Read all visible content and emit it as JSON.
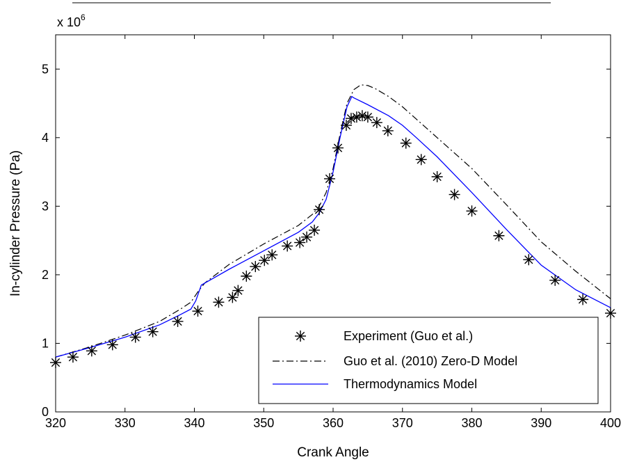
{
  "chart_data": {
    "type": "line",
    "xlabel": "Crank Angle",
    "ylabel": "In-cylinder Pressure (Pa)",
    "y_multiplier_base": "x 10",
    "y_multiplier_exp": "6",
    "xlim": [
      320,
      400
    ],
    "ylim": [
      0,
      5.5
    ],
    "x_ticks": [
      "320",
      "330",
      "340",
      "350",
      "360",
      "370",
      "380",
      "390",
      "400"
    ],
    "y_ticks": [
      "0",
      "1",
      "2",
      "3",
      "4",
      "5"
    ],
    "grid": false,
    "legend_position": "bottom-right",
    "series": [
      {
        "name": "Experiment (Guo et al.)",
        "style": "markers",
        "marker": "asterisk",
        "color": "#000000",
        "x": [
          320,
          322.5,
          325.2,
          328.2,
          331.5,
          334,
          337.6,
          340.5,
          343.5,
          345.5,
          346.3,
          347.5,
          348.8,
          350.1,
          351.2,
          353.4,
          355.2,
          356.2,
          357.3,
          358,
          359.5,
          360.7,
          361.9,
          362.6,
          363.4,
          364.2,
          365,
          366.3,
          367.9,
          370.5,
          372.7,
          375,
          377.5,
          380,
          383.9,
          388.2,
          392,
          396,
          400
        ],
        "y": [
          0.72,
          0.8,
          0.89,
          0.98,
          1.09,
          1.17,
          1.32,
          1.47,
          1.6,
          1.67,
          1.77,
          1.98,
          2.12,
          2.21,
          2.29,
          2.42,
          2.47,
          2.55,
          2.65,
          2.95,
          3.4,
          3.85,
          4.18,
          4.28,
          4.3,
          4.32,
          4.3,
          4.22,
          4.1,
          3.92,
          3.68,
          3.43,
          3.17,
          2.93,
          2.57,
          2.22,
          1.92,
          1.64,
          1.44
        ]
      },
      {
        "name": "Guo et al. (2010) Zero-D Model",
        "style": "dashdot",
        "color": "#000000",
        "x": [
          320,
          325,
          330,
          335,
          338,
          339.5,
          340.5,
          341.5,
          345,
          350,
          355,
          357,
          358,
          359,
          360,
          361,
          362,
          363,
          364,
          365,
          366,
          368,
          370,
          372,
          375,
          380,
          385,
          390,
          395,
          400
        ],
        "y": [
          0.8,
          0.95,
          1.12,
          1.32,
          1.5,
          1.6,
          1.75,
          1.88,
          2.15,
          2.45,
          2.72,
          2.88,
          3.0,
          3.2,
          3.55,
          4.05,
          4.5,
          4.7,
          4.77,
          4.76,
          4.72,
          4.6,
          4.45,
          4.27,
          4.0,
          3.55,
          3.02,
          2.48,
          2.05,
          1.65
        ]
      },
      {
        "name": "Thermodynamics Model",
        "style": "solid",
        "color": "#0000ff",
        "x": [
          320,
          325,
          330,
          335,
          338,
          339.5,
          340.2,
          341,
          345,
          350,
          355,
          357,
          358,
          359,
          360,
          361,
          362,
          362.7,
          363,
          365,
          368,
          370,
          372,
          375,
          380,
          385,
          390,
          395,
          400
        ],
        "y": [
          0.8,
          0.94,
          1.09,
          1.27,
          1.42,
          1.5,
          1.62,
          1.85,
          2.08,
          2.35,
          2.62,
          2.77,
          2.9,
          3.1,
          3.5,
          4.0,
          4.45,
          4.6,
          4.58,
          4.48,
          4.32,
          4.18,
          4.0,
          3.72,
          3.2,
          2.66,
          2.14,
          1.78,
          1.52
        ]
      }
    ]
  }
}
